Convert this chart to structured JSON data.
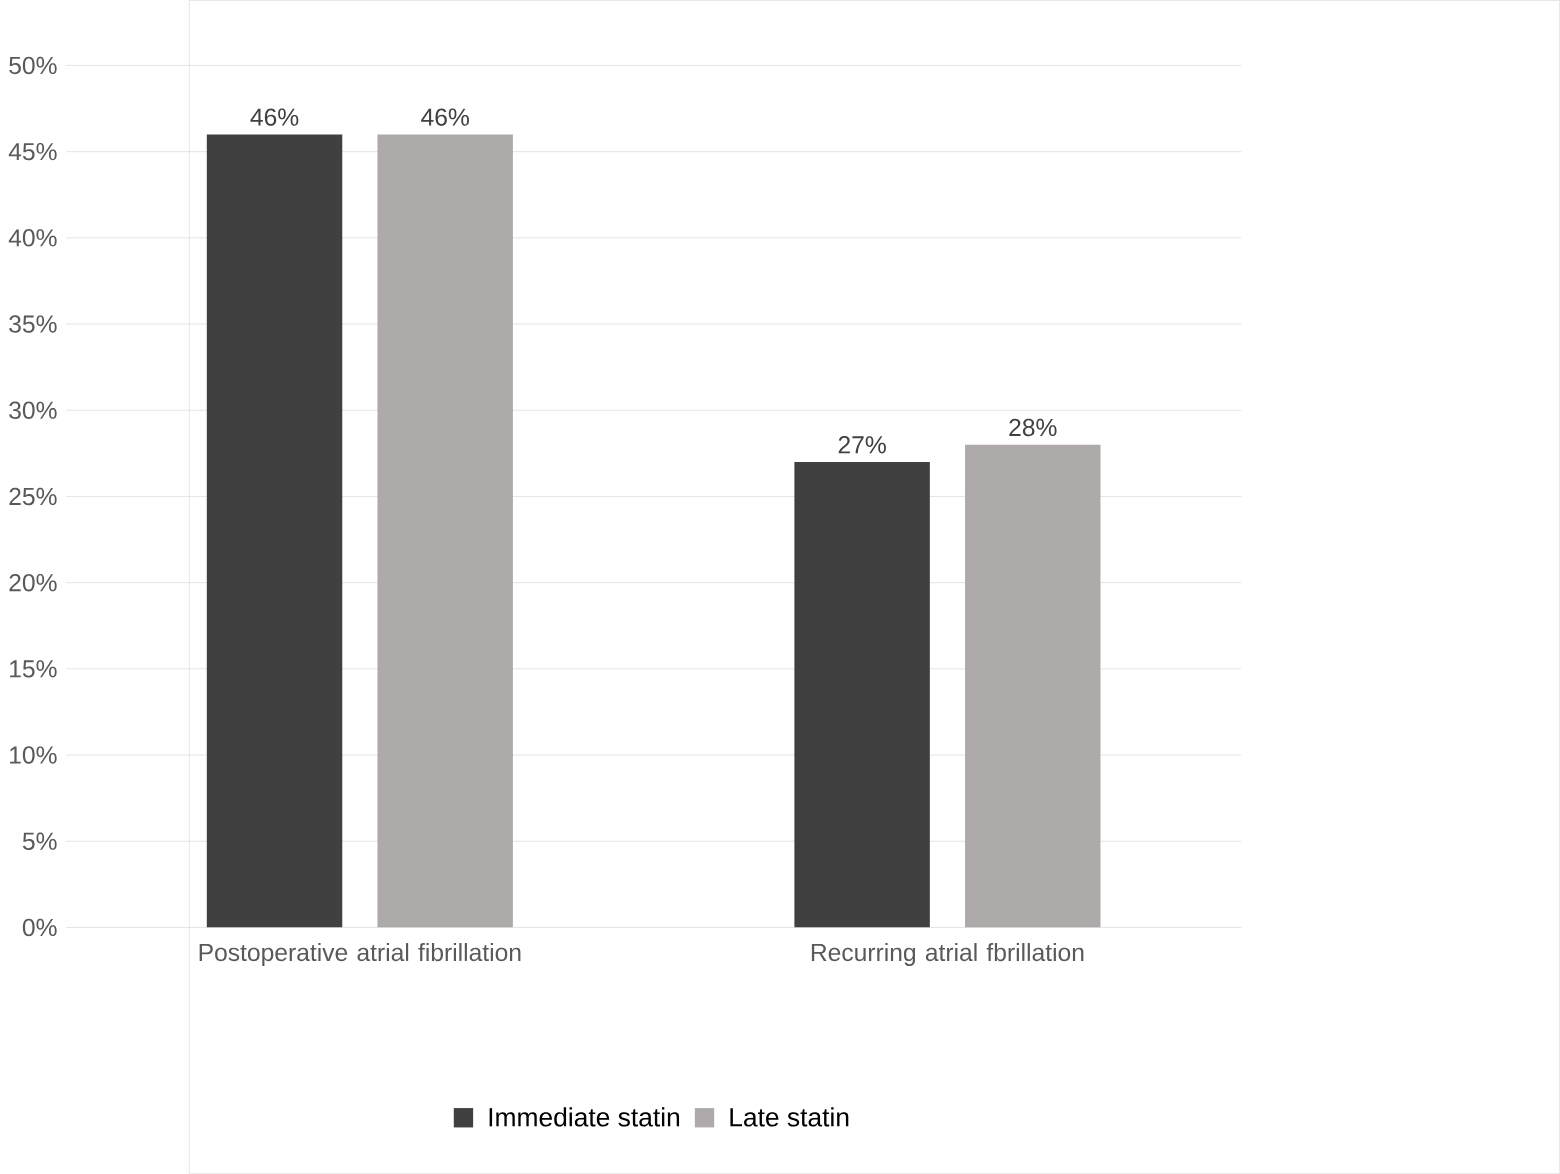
{
  "chart_data": {
    "type": "bar",
    "categories": [
      "Postoperative atrial fibrillation",
      "Recurring atrial fbrillation"
    ],
    "series": [
      {
        "name": "Immediate statin",
        "color": "#404040",
        "values": [
          46,
          27
        ],
        "value_labels": [
          "46%",
          "27%"
        ]
      },
      {
        "name": "Late statin",
        "color": "#aeaaaa",
        "values": [
          46,
          28
        ],
        "value_labels": [
          "46%",
          "28%"
        ]
      }
    ],
    "ylim": [
      0,
      50
    ],
    "yticks": [
      {
        "value": 0,
        "label": "0%"
      },
      {
        "value": 5,
        "label": "5%"
      },
      {
        "value": 10,
        "label": "10%"
      },
      {
        "value": 15,
        "label": "15%"
      },
      {
        "value": 20,
        "label": "20%"
      },
      {
        "value": 25,
        "label": "25%"
      },
      {
        "value": 30,
        "label": "30%"
      },
      {
        "value": 35,
        "label": "35%"
      },
      {
        "value": 40,
        "label": "40%"
      },
      {
        "value": 45,
        "label": "45%"
      },
      {
        "value": 50,
        "label": "50%"
      }
    ],
    "grid": "y",
    "legend": "bottom"
  }
}
